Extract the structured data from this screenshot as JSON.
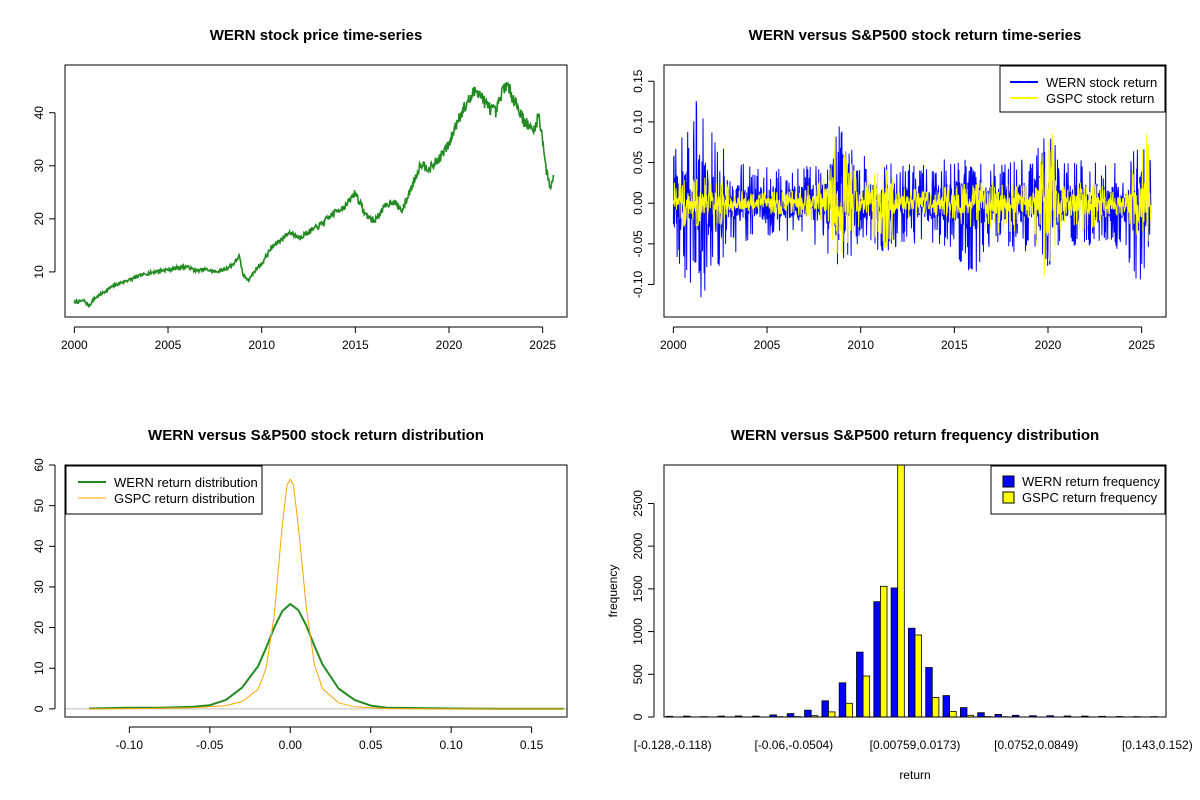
{
  "chart_data": [
    {
      "type": "line",
      "title": "WERN stock price time-series",
      "xlabel": "",
      "ylabel": "",
      "xlim": [
        1999.5,
        2026.3
      ],
      "ylim": [
        1.5,
        49
      ],
      "x_ticks": [
        2000,
        2005,
        2010,
        2015,
        2020,
        2025
      ],
      "y_ticks": [
        10,
        20,
        30,
        40
      ],
      "series": [
        {
          "color": "#228B22",
          "points": [
            [
              2000.0,
              4.2
            ],
            [
              2000.5,
              4.6
            ],
            [
              2000.8,
              3.6
            ],
            [
              2001.0,
              4.8
            ],
            [
              2001.5,
              6.0
            ],
            [
              2002.0,
              7.2
            ],
            [
              2002.5,
              8.0
            ],
            [
              2003.0,
              8.6
            ],
            [
              2003.5,
              9.3
            ],
            [
              2004.0,
              9.8
            ],
            [
              2004.5,
              10.2
            ],
            [
              2005.0,
              10.4
            ],
            [
              2005.5,
              10.8
            ],
            [
              2006.0,
              11.0
            ],
            [
              2006.5,
              10.2
            ],
            [
              2007.0,
              10.5
            ],
            [
              2007.5,
              10.0
            ],
            [
              2008.0,
              10.4
            ],
            [
              2008.5,
              11.5
            ],
            [
              2008.8,
              13.0
            ],
            [
              2009.0,
              9.5
            ],
            [
              2009.3,
              8.5
            ],
            [
              2009.8,
              11.0
            ],
            [
              2010.0,
              11.5
            ],
            [
              2010.5,
              14.5
            ],
            [
              2011.0,
              16.0
            ],
            [
              2011.5,
              17.5
            ],
            [
              2012.0,
              16.5
            ],
            [
              2012.5,
              17.5
            ],
            [
              2013.0,
              18.5
            ],
            [
              2013.5,
              20.0
            ],
            [
              2014.0,
              21.5
            ],
            [
              2014.5,
              22.5
            ],
            [
              2015.0,
              25.0
            ],
            [
              2015.5,
              21.0
            ],
            [
              2016.0,
              19.5
            ],
            [
              2016.5,
              22.0
            ],
            [
              2017.0,
              23.5
            ],
            [
              2017.5,
              21.5
            ],
            [
              2018.0,
              26.0
            ],
            [
              2018.5,
              30.5
            ],
            [
              2019.0,
              29.5
            ],
            [
              2019.5,
              31.5
            ],
            [
              2020.0,
              34.0
            ],
            [
              2020.5,
              39.0
            ],
            [
              2021.0,
              42.0
            ],
            [
              2021.5,
              44.5
            ],
            [
              2022.0,
              41.5
            ],
            [
              2022.5,
              40.0
            ],
            [
              2023.0,
              45.5
            ],
            [
              2023.5,
              42.5
            ],
            [
              2024.0,
              38.5
            ],
            [
              2024.5,
              36.5
            ],
            [
              2024.8,
              39.5
            ],
            [
              2025.0,
              35.0
            ],
            [
              2025.2,
              29.0
            ],
            [
              2025.4,
              26.0
            ],
            [
              2025.6,
              28.0
            ]
          ]
        }
      ]
    },
    {
      "type": "line",
      "title": "WERN versus S&P500 stock return time-series",
      "xlabel": "",
      "ylabel": "",
      "xlim": [
        1999.5,
        2026.3
      ],
      "ylim": [
        -0.14,
        0.17
      ],
      "x_ticks": [
        2000,
        2005,
        2010,
        2015,
        2020,
        2025
      ],
      "y_ticks": [
        -0.1,
        -0.05,
        0.0,
        0.05,
        0.1,
        0.15
      ],
      "legend_position": "top-right",
      "series": [
        {
          "name": "WERN stock return",
          "color": "#0000FF",
          "envelope": [
            [
              2000.0,
              0.06,
              -0.08
            ],
            [
              2000.5,
              0.09,
              -0.09
            ],
            [
              2001.0,
              0.1,
              -0.11
            ],
            [
              2001.5,
              0.16,
              -0.12
            ],
            [
              2002.0,
              0.09,
              -0.09
            ],
            [
              2002.5,
              0.1,
              -0.1
            ],
            [
              2003.0,
              0.06,
              -0.07
            ],
            [
              2004.0,
              0.05,
              -0.05
            ],
            [
              2005.0,
              0.05,
              -0.04
            ],
            [
              2006.0,
              0.04,
              -0.05
            ],
            [
              2007.0,
              0.05,
              -0.05
            ],
            [
              2008.0,
              0.05,
              -0.06
            ],
            [
              2008.8,
              0.1,
              -0.11
            ],
            [
              2009.5,
              0.07,
              -0.08
            ],
            [
              2010.0,
              0.06,
              -0.05
            ],
            [
              2011.0,
              0.05,
              -0.06
            ],
            [
              2011.5,
              0.06,
              -0.07
            ],
            [
              2012.0,
              0.05,
              -0.05
            ],
            [
              2013.0,
              0.05,
              -0.05
            ],
            [
              2014.0,
              0.05,
              -0.05
            ],
            [
              2015.0,
              0.06,
              -0.06
            ],
            [
              2016.0,
              0.05,
              -0.1
            ],
            [
              2017.0,
              0.05,
              -0.05
            ],
            [
              2018.0,
              0.06,
              -0.06
            ],
            [
              2019.0,
              0.05,
              -0.06
            ],
            [
              2020.0,
              0.11,
              -0.09
            ],
            [
              2020.5,
              0.06,
              -0.06
            ],
            [
              2021.0,
              0.05,
              -0.05
            ],
            [
              2022.0,
              0.06,
              -0.06
            ],
            [
              2023.0,
              0.05,
              -0.05
            ],
            [
              2024.0,
              0.06,
              -0.06
            ],
            [
              2025.0,
              0.07,
              -0.11
            ],
            [
              2025.5,
              0.06,
              -0.04
            ]
          ]
        },
        {
          "name": "GSPC stock return",
          "color": "#FFFF00",
          "envelope": [
            [
              2000.0,
              0.03,
              -0.03
            ],
            [
              2001.0,
              0.03,
              -0.03
            ],
            [
              2002.0,
              0.035,
              -0.035
            ],
            [
              2003.0,
              0.025,
              -0.02
            ],
            [
              2004.0,
              0.015,
              -0.015
            ],
            [
              2006.0,
              0.015,
              -0.015
            ],
            [
              2007.0,
              0.02,
              -0.02
            ],
            [
              2008.0,
              0.03,
              -0.03
            ],
            [
              2008.8,
              0.11,
              -0.09
            ],
            [
              2009.3,
              0.06,
              -0.05
            ],
            [
              2010.0,
              0.03,
              -0.03
            ],
            [
              2011.5,
              0.045,
              -0.065
            ],
            [
              2012.0,
              0.02,
              -0.02
            ],
            [
              2014.0,
              0.015,
              -0.015
            ],
            [
              2015.5,
              0.03,
              -0.03
            ],
            [
              2016.0,
              0.025,
              -0.03
            ],
            [
              2018.0,
              0.03,
              -0.04
            ],
            [
              2019.0,
              0.02,
              -0.02
            ],
            [
              2020.2,
              0.09,
              -0.128
            ],
            [
              2020.5,
              0.04,
              -0.04
            ],
            [
              2021.0,
              0.02,
              -0.02
            ],
            [
              2022.0,
              0.03,
              -0.04
            ],
            [
              2023.0,
              0.02,
              -0.02
            ],
            [
              2024.0,
              0.015,
              -0.015
            ],
            [
              2025.3,
              0.095,
              -0.06
            ],
            [
              2025.5,
              0.02,
              -0.02
            ]
          ]
        }
      ]
    },
    {
      "type": "line",
      "title": "WERN versus S&P500 stock return distribution",
      "xlabel": "",
      "ylabel": "",
      "xlim": [
        -0.14,
        0.172
      ],
      "ylim": [
        -2,
        60
      ],
      "x_ticks": [
        -0.1,
        -0.05,
        0.0,
        0.05,
        0.1,
        0.15
      ],
      "x_tick_labels": [
        "-0.10",
        "-0.05",
        "0.00",
        "0.05",
        "0.10",
        "0.15"
      ],
      "y_ticks": [
        0,
        10,
        20,
        30,
        40,
        50,
        60
      ],
      "legend_position": "top-left",
      "series": [
        {
          "name": "WERN return distribution",
          "color": "#228B22",
          "x": [
            -0.125,
            -0.1,
            -0.08,
            -0.06,
            -0.05,
            -0.04,
            -0.03,
            -0.02,
            -0.015,
            -0.01,
            -0.005,
            0.0,
            0.005,
            0.01,
            0.015,
            0.02,
            0.03,
            0.04,
            0.05,
            0.06,
            0.08,
            0.1,
            0.13,
            0.17
          ],
          "values": [
            0.1,
            0.3,
            0.3,
            0.5,
            0.9,
            2.2,
            5.2,
            10.5,
            15.0,
            20.0,
            24.0,
            25.8,
            24.3,
            20.5,
            15.5,
            11.0,
            5.0,
            2.2,
            0.8,
            0.3,
            0.2,
            0.1,
            0.05,
            0.05
          ]
        },
        {
          "name": "GSPC return distribution",
          "color": "#FFA500",
          "x": [
            -0.125,
            -0.09,
            -0.06,
            -0.04,
            -0.03,
            -0.02,
            -0.015,
            -0.01,
            -0.005,
            -0.002,
            0.0,
            0.002,
            0.005,
            0.01,
            0.015,
            0.02,
            0.03,
            0.04,
            0.06,
            0.09,
            0.17
          ],
          "values": [
            0.0,
            0.1,
            0.3,
            0.8,
            1.8,
            4.8,
            10.0,
            23.0,
            45.0,
            55.0,
            56.5,
            55.0,
            45.0,
            25.0,
            11.0,
            5.0,
            1.5,
            0.5,
            0.1,
            0.0,
            0.0
          ]
        }
      ]
    },
    {
      "type": "bar",
      "title": "WERN versus S&P500 return frequency distribution",
      "xlabel": "return",
      "ylabel": "frequency",
      "ylim": [
        0,
        2950
      ],
      "y_ticks": [
        0,
        500,
        1000,
        1500,
        2000,
        2500
      ],
      "x_tick_labels": [
        "[-0.128,-0.118)",
        "[-0.06,-0.0504)",
        "[0.00759,0.0173)",
        "[0.0752,0.0849)",
        "[0.143,0.152)"
      ],
      "x_tick_positions": [
        0,
        7,
        14,
        21,
        28
      ],
      "legend_position": "top-right",
      "bin_count": 29,
      "series": [
        {
          "name": "WERN return frequency",
          "color": "#0000FF",
          "values": [
            8,
            10,
            5,
            10,
            12,
            10,
            25,
            40,
            80,
            190,
            400,
            760,
            1350,
            1510,
            1040,
            580,
            250,
            110,
            50,
            30,
            20,
            15,
            15,
            12,
            10,
            8,
            6,
            5,
            5
          ]
        },
        {
          "name": "GSPC return frequency",
          "color": "#FFFF00",
          "values": [
            0,
            0,
            0,
            0,
            0,
            0,
            3,
            5,
            15,
            60,
            160,
            480,
            1530,
            2950,
            960,
            230,
            65,
            20,
            5,
            3,
            0,
            0,
            0,
            0,
            0,
            0,
            0,
            0,
            0
          ]
        }
      ]
    }
  ]
}
